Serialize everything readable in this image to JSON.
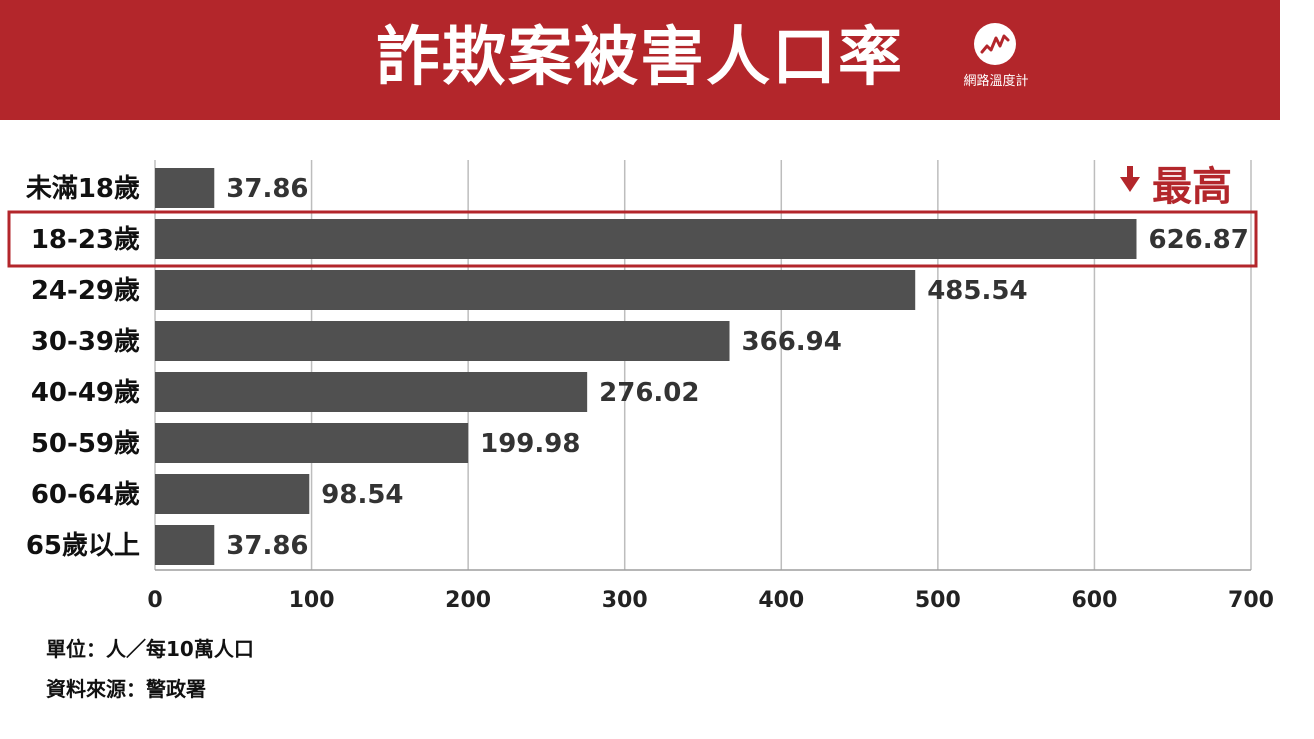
{
  "header": {
    "title": "詐欺案被害人口率",
    "logo_text": "網路溫度計",
    "background_color": "#b3262b"
  },
  "highlight_label": "最高",
  "footnotes": {
    "unit": "單位：人／每10萬人口",
    "source": "資料來源：警政署"
  },
  "chart_data": {
    "type": "bar",
    "orientation": "horizontal",
    "categories": [
      "未滿18歲",
      "18-23歲",
      "24-29歲",
      "30-39歲",
      "40-49歲",
      "50-59歲",
      "60-64歲",
      "65歲以上"
    ],
    "values": [
      37.86,
      626.87,
      485.54,
      366.94,
      276.02,
      199.98,
      98.54,
      37.86
    ],
    "value_labels": [
      "37.86",
      "626.87",
      "485.54",
      "366.94",
      "276.02",
      "199.98",
      "98.54",
      "37.86"
    ],
    "xlim": [
      0,
      700
    ],
    "xticks": [
      "0",
      "100",
      "200",
      "300",
      "400",
      "500",
      "600",
      "700"
    ],
    "grid": "vertical",
    "highlight_index": 1,
    "bar_color": "#505050",
    "highlight_color": "#b3262b"
  }
}
